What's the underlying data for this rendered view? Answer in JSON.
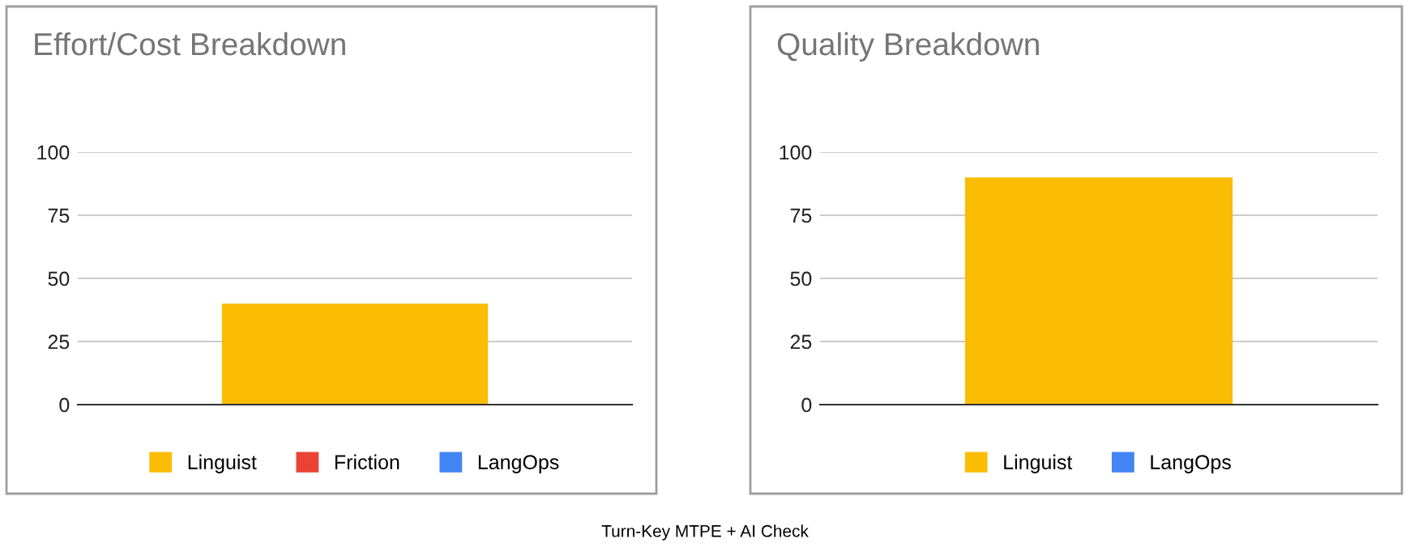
{
  "chart_data": [
    {
      "type": "bar",
      "title": "Effort/Cost Breakdown",
      "categories": [
        null
      ],
      "stacked": true,
      "series": [
        {
          "name": "Linguist",
          "color": "#fbbc04",
          "values": [
            40
          ]
        },
        {
          "name": "Friction",
          "color": "#ea4335",
          "values": [
            0
          ]
        },
        {
          "name": "LangOps",
          "color": "#4285f4",
          "values": [
            0
          ]
        }
      ],
      "ylim": [
        0,
        100
      ],
      "yticks": [
        0,
        25,
        50,
        75,
        100
      ],
      "grid": "y",
      "legend": "bottom",
      "annotations": [
        "Turn-Key MTPE + AI Check"
      ]
    },
    {
      "type": "bar",
      "title": "Quality Breakdown",
      "categories": [
        null
      ],
      "stacked": true,
      "series": [
        {
          "name": "Linguist",
          "color": "#fbbc04",
          "values": [
            90
          ]
        },
        {
          "name": "LangOps",
          "color": "#4285f4",
          "values": [
            0
          ]
        }
      ],
      "ylim": [
        0,
        100
      ],
      "yticks": [
        0,
        25,
        50,
        75,
        100
      ],
      "grid": "y",
      "legend": "bottom"
    }
  ]
}
